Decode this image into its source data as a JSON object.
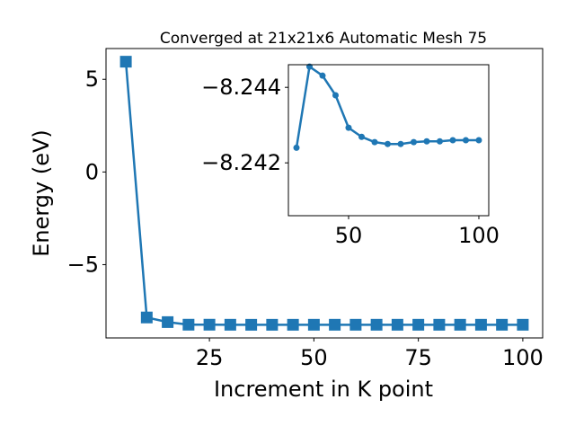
{
  "chart_data": [
    {
      "type": "line",
      "title": "Converged at 21x21x6 Automatic Mesh 75",
      "xlabel": "Increment in K point",
      "ylabel": "Energy (eV)",
      "x": [
        5,
        10,
        15,
        20,
        25,
        30,
        35,
        40,
        45,
        50,
        55,
        60,
        65,
        70,
        75,
        80,
        85,
        90,
        95,
        100
      ],
      "values": [
        5.95,
        -7.85,
        -8.1,
        -8.24,
        -8.24,
        -8.2424,
        -8.24455,
        -8.24431,
        -8.24379,
        -8.24293,
        -8.24269,
        -8.24255,
        -8.2425,
        -8.2425,
        -8.24255,
        -8.24257,
        -8.24257,
        -8.2426,
        -8.2426,
        -8.2426
      ],
      "color": "#1f77b4",
      "marker": "square",
      "xlim": [
        0.25,
        104.75
      ],
      "xticks": [
        25,
        50,
        75,
        100
      ],
      "ylim": [
        -8.954,
        6.66
      ],
      "yticks": [
        {
          "value": -5,
          "label": "−5"
        },
        0,
        5
      ]
    },
    {
      "type": "line",
      "x": [
        30,
        35,
        40,
        45,
        50,
        55,
        60,
        65,
        70,
        75,
        80,
        85,
        90,
        95,
        100
      ],
      "values": [
        -8.2424,
        -8.24455,
        -8.24431,
        -8.24379,
        -8.24293,
        -8.24269,
        -8.24255,
        -8.2425,
        -8.2425,
        -8.24255,
        -8.24257,
        -8.24257,
        -8.2426,
        -8.2426,
        -8.2426
      ],
      "color": "#1f77b4",
      "marker": "circle",
      "xlim": [
        26.9,
        103.8
      ],
      "xticks": [
        50,
        100
      ],
      "ylim": [
        -8.2406,
        -8.2446
      ],
      "yticks": [
        {
          "value": -8.244,
          "label": "−8.244"
        },
        {
          "value": -8.242,
          "label": "−8.242"
        }
      ]
    }
  ]
}
